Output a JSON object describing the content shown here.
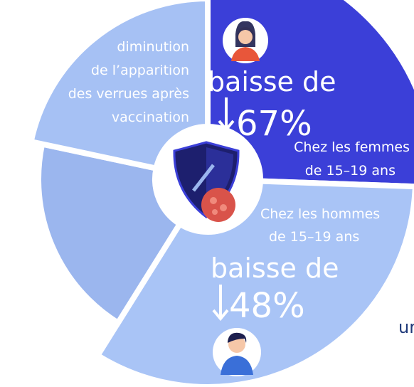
{
  "description": {
    "lines": [
      "diminution",
      "de l’apparition",
      "des verrues après",
      "vaccination"
    ]
  },
  "women": {
    "label": "baisse de",
    "value": "67%",
    "group": [
      "Chez les femmes",
      "de 15–19 ans"
    ]
  },
  "men": {
    "group": [
      "Chez les hommes",
      "de 15–19 ans"
    ],
    "label": "baisse de",
    "value": "48%"
  },
  "fragment": "un"
}
